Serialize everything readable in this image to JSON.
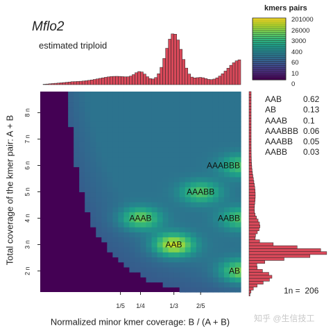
{
  "chart_data": {
    "type": "heatmap",
    "title": "Mflo2",
    "subtitle": "estimated triploid",
    "xlabel": "Normalized minor kmer coverage: B / (A + B)",
    "ylabel": "Total coverage of the kmer pair: A + B",
    "x_ticks": [
      "1/5",
      "1/4",
      "1/3",
      "2/5"
    ],
    "y_ticks": [
      "2 n",
      "3 n",
      "4 n",
      "5 n",
      "6 n",
      "7 n",
      "8 n"
    ],
    "legend_title": "kmers pairs",
    "legend_ticks": [
      "201000",
      "26000",
      "3000",
      "400",
      "60",
      "10",
      "0"
    ],
    "peaks": [
      {
        "label": "AAB",
        "x": 0.333,
        "y": 3.0
      },
      {
        "label": "AB",
        "x": 0.5,
        "y": 2.0
      },
      {
        "label": "AAAB",
        "x": 0.25,
        "y": 4.0
      },
      {
        "label": "AABB",
        "x": 0.5,
        "y": 4.0
      },
      {
        "label": "AAABB",
        "x": 0.4,
        "y": 5.0
      },
      {
        "label": "AAABBB",
        "x": 0.5,
        "y": 6.0
      }
    ],
    "ploidy_proportions": [
      {
        "genotype": "AAB",
        "value": "0.62"
      },
      {
        "genotype": "AB",
        "value": "0.13"
      },
      {
        "genotype": "AAAB",
        "value": "0.1"
      },
      {
        "genotype": "AAABBB",
        "value": "0.06"
      },
      {
        "genotype": "AAABB",
        "value": "0.05"
      },
      {
        "genotype": "AABB",
        "value": "0.03"
      }
    ],
    "one_n_label": "1n =",
    "one_n_value": "206"
  },
  "watermark": "知乎 @生信技工",
  "colors": {
    "histogram_fill": "#d9495a",
    "histogram_stroke": "#222222",
    "viridis": [
      "#440154",
      "#482878",
      "#3e4989",
      "#31688e",
      "#26828e",
      "#1f9e89",
      "#35b779",
      "#6ece58",
      "#b5de2b",
      "#fde725"
    ]
  }
}
